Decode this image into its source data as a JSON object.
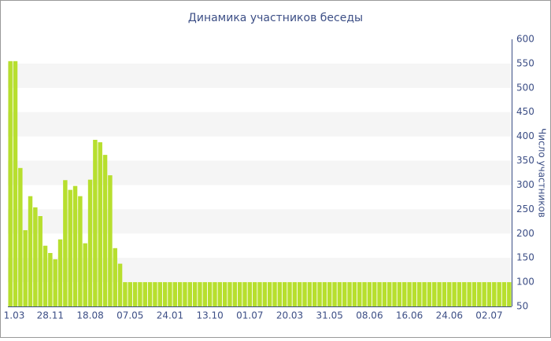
{
  "chart_data": {
    "type": "bar",
    "title": "Динамика участников беседы",
    "y_label": "Число участников",
    "categories": [
      "1.03",
      null,
      null,
      null,
      null,
      null,
      null,
      null,
      "28.11",
      null,
      null,
      null,
      null,
      null,
      null,
      null,
      "18.08",
      null,
      null,
      null,
      null,
      null,
      null,
      null,
      "07.05",
      null,
      null,
      null,
      null,
      null,
      null,
      null,
      "24.01",
      null,
      null,
      null,
      null,
      null,
      null,
      null,
      "13.10",
      null,
      null,
      null,
      null,
      null,
      null,
      null,
      "01.07",
      null,
      null,
      null,
      null,
      null,
      null,
      null,
      "20.03",
      null,
      null,
      null,
      null,
      null,
      null,
      null,
      "31.05",
      null,
      null,
      null,
      null,
      null,
      null,
      null,
      "08.06",
      null,
      null,
      null,
      null,
      null,
      null,
      null,
      "16.06",
      null,
      null,
      null,
      null,
      null,
      null,
      null,
      "24.06",
      null,
      null,
      null,
      null,
      null,
      null,
      null,
      "02.07",
      null,
      null,
      null,
      null
    ],
    "values": [
      555,
      555,
      335,
      207,
      277,
      254,
      236,
      175,
      160,
      147,
      188,
      310,
      290,
      298,
      277,
      180,
      311,
      393,
      388,
      362,
      320,
      170,
      138,
      100,
      100,
      100,
      100,
      100,
      100,
      100,
      100,
      100,
      100,
      100,
      100,
      100,
      100,
      100,
      100,
      100,
      100,
      100,
      100,
      100,
      100,
      100,
      100,
      100,
      100,
      100,
      100,
      100,
      100,
      100,
      100,
      100,
      100,
      100,
      100,
      100,
      100,
      100,
      100,
      100,
      100,
      100,
      100,
      100,
      100,
      100,
      100,
      100,
      100,
      100,
      100,
      100,
      100,
      100,
      100,
      100,
      100,
      100,
      100,
      100,
      100,
      100,
      100,
      100,
      100,
      100,
      100,
      100,
      100,
      100,
      100,
      100,
      100,
      100,
      100,
      100,
      100
    ],
    "color": "#b7df2e",
    "ylim": [
      50,
      600
    ],
    "yticks": [
      50,
      100,
      150,
      200,
      250,
      300,
      350,
      400,
      450,
      500,
      550,
      600
    ],
    "grid": "bands",
    "y_axis_side": "right"
  }
}
